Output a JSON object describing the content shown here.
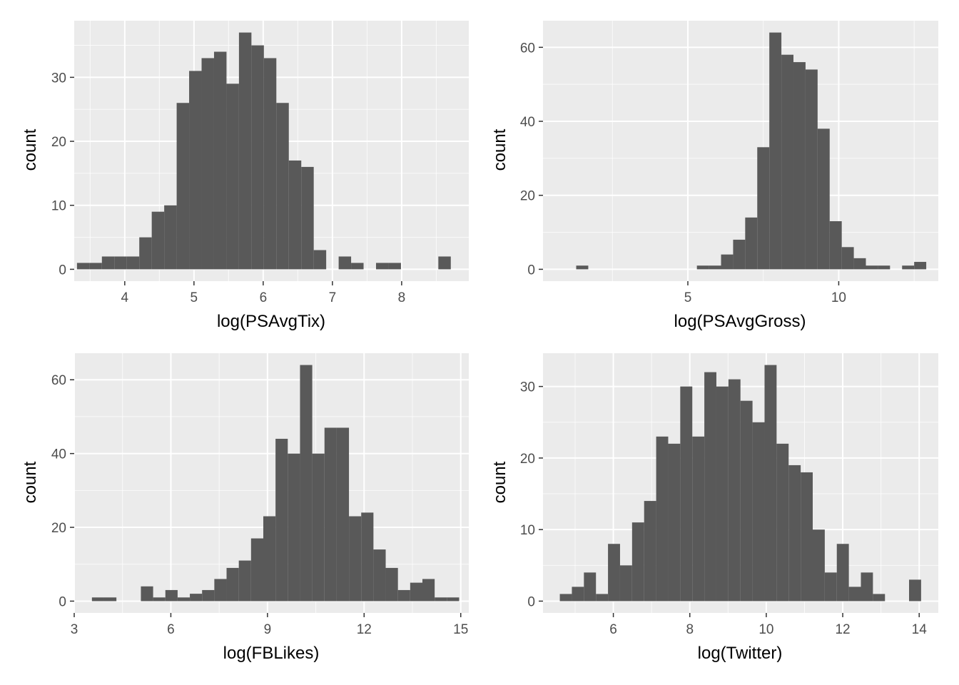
{
  "colors": {
    "panel_background": "#ebebeb",
    "grid_major": "#ffffff",
    "bar_fill": "#595959",
    "tick_text": "#4d4d4d",
    "tick_mark": "#333333",
    "axis_title": "#000000"
  },
  "chart_data": [
    {
      "type": "bar",
      "subtype": "histogram",
      "xlabel": "log(PSAvgTix)",
      "ylabel": "count",
      "bin_width": 0.18,
      "bin_starts": [
        3.31,
        3.49,
        3.67,
        3.85,
        4.03,
        4.21,
        4.39,
        4.57,
        4.75,
        4.93,
        5.11,
        5.29,
        5.47,
        5.65,
        5.83,
        6.01,
        6.19,
        6.37,
        6.55,
        6.73,
        6.91,
        7.09,
        7.27,
        7.45,
        7.63,
        7.81,
        7.99,
        8.17,
        8.35,
        8.53
      ],
      "counts": [
        1,
        1,
        2,
        2,
        2,
        5,
        9,
        10,
        26,
        31,
        33,
        34,
        29,
        37,
        35,
        33,
        26,
        17,
        16,
        3,
        0,
        2,
        1,
        0,
        1,
        1,
        0,
        0,
        0,
        2
      ],
      "xlim": [
        3.27,
        8.97
      ],
      "ylim": [
        -1.85,
        38.85
      ],
      "x_ticks": [
        4,
        5,
        6,
        7,
        8
      ],
      "x_tick_labels": [
        "4",
        "5",
        "6",
        "7",
        "8"
      ],
      "y_ticks": [
        0,
        10,
        20,
        30
      ],
      "y_tick_labels": [
        "0",
        "10",
        "20",
        "30"
      ],
      "grid": true
    },
    {
      "type": "bar",
      "subtype": "histogram",
      "xlabel": "log(PSAvgGross)",
      "ylabel": "count",
      "bin_width": 0.4,
      "bin_starts": [
        1.3,
        1.7,
        2.1,
        2.5,
        2.9,
        3.3,
        3.7,
        4.1,
        4.5,
        4.9,
        5.3,
        5.7,
        6.1,
        6.5,
        6.9,
        7.3,
        7.7,
        8.1,
        8.5,
        8.9,
        9.3,
        9.7,
        10.1,
        10.5,
        10.9,
        11.3,
        11.7,
        12.1,
        12.5,
        12.9
      ],
      "counts": [
        1,
        0,
        0,
        0,
        0,
        0,
        0,
        0,
        0,
        0,
        1,
        1,
        4,
        8,
        14,
        33,
        64,
        58,
        56,
        54,
        38,
        13,
        6,
        3,
        1,
        1,
        0,
        1,
        2,
        0
      ],
      "xlim": [
        0.2,
        13.3
      ],
      "ylim": [
        -3.2,
        67.2
      ],
      "x_ticks": [
        5,
        10
      ],
      "x_tick_labels": [
        "5",
        "10"
      ],
      "y_ticks": [
        0,
        20,
        40,
        60
      ],
      "y_tick_labels": [
        "0",
        "20",
        "40",
        "60"
      ],
      "grid": true
    },
    {
      "type": "bar",
      "subtype": "histogram",
      "xlabel": "log(FBLikes)",
      "ylabel": "count",
      "bin_width": 0.38,
      "bin_starts": [
        3.55,
        3.93,
        4.31,
        4.69,
        5.07,
        5.45,
        5.83,
        6.21,
        6.59,
        6.97,
        7.35,
        7.73,
        8.11,
        8.49,
        8.87,
        9.25,
        9.63,
        10.01,
        10.39,
        10.77,
        11.15,
        11.53,
        11.91,
        12.29,
        12.67,
        13.05,
        13.43,
        13.81,
        14.19,
        14.57
      ],
      "counts": [
        1,
        1,
        0,
        0,
        4,
        1,
        3,
        1,
        2,
        3,
        6,
        9,
        11,
        17,
        23,
        44,
        40,
        64,
        40,
        47,
        47,
        23,
        24,
        14,
        9,
        3,
        5,
        6,
        1,
        1
      ],
      "xlim": [
        3.0,
        15.25
      ],
      "ylim": [
        -3.2,
        67.2
      ],
      "x_ticks": [
        3,
        6,
        9,
        12,
        15
      ],
      "x_tick_labels": [
        "3",
        "6",
        "9",
        "12",
        "15"
      ],
      "y_ticks": [
        0,
        20,
        40,
        60
      ],
      "y_tick_labels": [
        "0",
        "20",
        "40",
        "60"
      ],
      "grid": true
    },
    {
      "type": "bar",
      "subtype": "histogram",
      "xlabel": "log(Twitter)",
      "ylabel": "count",
      "bin_width": 0.315,
      "bin_starts": [
        4.6,
        4.915,
        5.23,
        5.545,
        5.86,
        6.175,
        6.49,
        6.805,
        7.12,
        7.435,
        7.75,
        8.065,
        8.38,
        8.695,
        9.01,
        9.325,
        9.64,
        9.955,
        10.27,
        10.585,
        10.9,
        11.215,
        11.53,
        11.845,
        12.16,
        12.475,
        12.79,
        13.105,
        13.42,
        13.735
      ],
      "counts": [
        1,
        2,
        4,
        1,
        8,
        5,
        11,
        14,
        23,
        22,
        30,
        23,
        32,
        30,
        31,
        28,
        25,
        33,
        22,
        19,
        18,
        10,
        4,
        8,
        2,
        4,
        1,
        0,
        0,
        3
      ],
      "xlim": [
        4.16,
        14.5
      ],
      "ylim": [
        -1.65,
        34.65
      ],
      "x_ticks": [
        6,
        8,
        10,
        12,
        14
      ],
      "x_tick_labels": [
        "6",
        "8",
        "10",
        "12",
        "14"
      ],
      "y_ticks": [
        0,
        10,
        20,
        30
      ],
      "y_tick_labels": [
        "0",
        "10",
        "20",
        "30"
      ],
      "grid": true
    }
  ]
}
